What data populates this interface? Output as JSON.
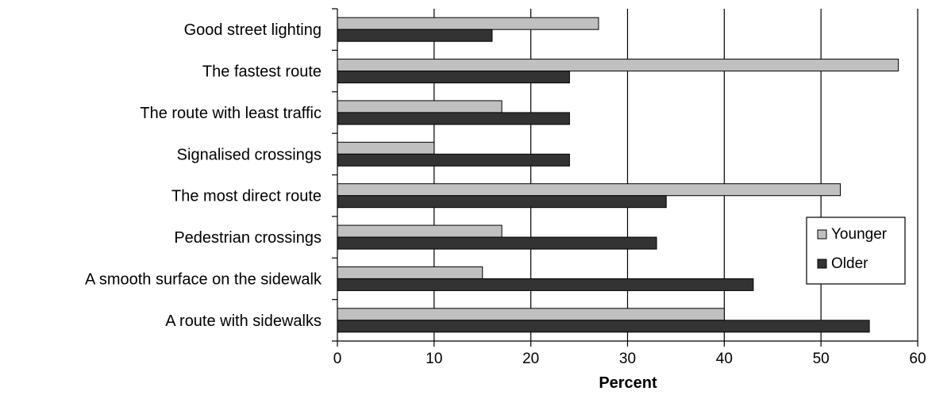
{
  "chart_data": {
    "type": "bar",
    "orientation": "horizontal",
    "categories": [
      "Good street lighting",
      "The fastest route",
      "The route with least traffic",
      "Signalised crossings",
      "The most direct route",
      "Pedestrian crossings",
      "A smooth surface on the sidewalk",
      "A route with sidewalks"
    ],
    "series": [
      {
        "name": "Younger",
        "values": [
          27,
          58,
          17,
          10,
          52,
          17,
          15,
          40
        ],
        "color": "#c0c0c0"
      },
      {
        "name": "Older",
        "values": [
          16,
          24,
          24,
          24,
          34,
          33,
          43,
          55
        ],
        "color": "#333333"
      }
    ],
    "xlabel": "Percent",
    "ylabel": "",
    "xlim": [
      0,
      60
    ],
    "xticks": [
      0,
      10,
      20,
      30,
      40,
      50,
      60
    ],
    "grid": "vertical",
    "legend": "right"
  }
}
